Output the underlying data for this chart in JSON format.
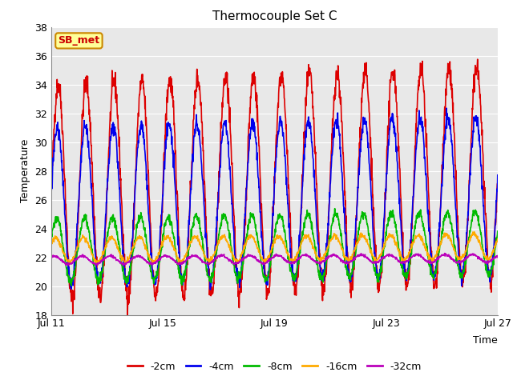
{
  "title": "Thermocouple Set C",
  "xlabel": "Time",
  "ylabel": "Temperature",
  "ylim": [
    18,
    38
  ],
  "yticks": [
    18,
    20,
    22,
    24,
    26,
    28,
    30,
    32,
    34,
    36,
    38
  ],
  "xtick_labels": [
    "Jul 11",
    "Jul 15",
    "Jul 19",
    "Jul 23",
    "Jul 27"
  ],
  "xtick_positions": [
    0,
    4,
    8,
    12,
    16
  ],
  "annotation_text": "SB_met",
  "annotation_bg": "#ffff99",
  "annotation_border": "#cc8800",
  "annotation_text_color": "#cc0000",
  "plot_bg_color": "#e8e8e8",
  "fig_bg_color": "#ffffff",
  "lines": {
    "-2cm": {
      "color": "#dd0000",
      "lw": 1.2,
      "amplitude": 7.5,
      "mean": 26.5,
      "phase": 0.0,
      "trend": 0.08,
      "noise": 0.4
    },
    "-4cm": {
      "color": "#0000ee",
      "lw": 1.2,
      "amplitude": 5.5,
      "mean": 25.5,
      "phase": 0.18,
      "trend": 0.05,
      "noise": 0.25
    },
    "-8cm": {
      "color": "#00bb00",
      "lw": 1.2,
      "amplitude": 2.2,
      "mean": 22.5,
      "phase": 0.35,
      "trend": 0.03,
      "noise": 0.15
    },
    "-16cm": {
      "color": "#ffaa00",
      "lw": 1.2,
      "amplitude": 0.85,
      "mean": 22.5,
      "phase": 0.6,
      "trend": 0.015,
      "noise": 0.08
    },
    "-32cm": {
      "color": "#bb00bb",
      "lw": 1.2,
      "amplitude": 0.28,
      "mean": 21.8,
      "phase": 0.9,
      "trend": 0.008,
      "noise": 0.04
    }
  },
  "legend_labels": [
    "-2cm",
    "-4cm",
    "-8cm",
    "-16cm",
    "-32cm"
  ],
  "legend_colors": [
    "#dd0000",
    "#0000ee",
    "#00bb00",
    "#ffaa00",
    "#bb00bb"
  ]
}
